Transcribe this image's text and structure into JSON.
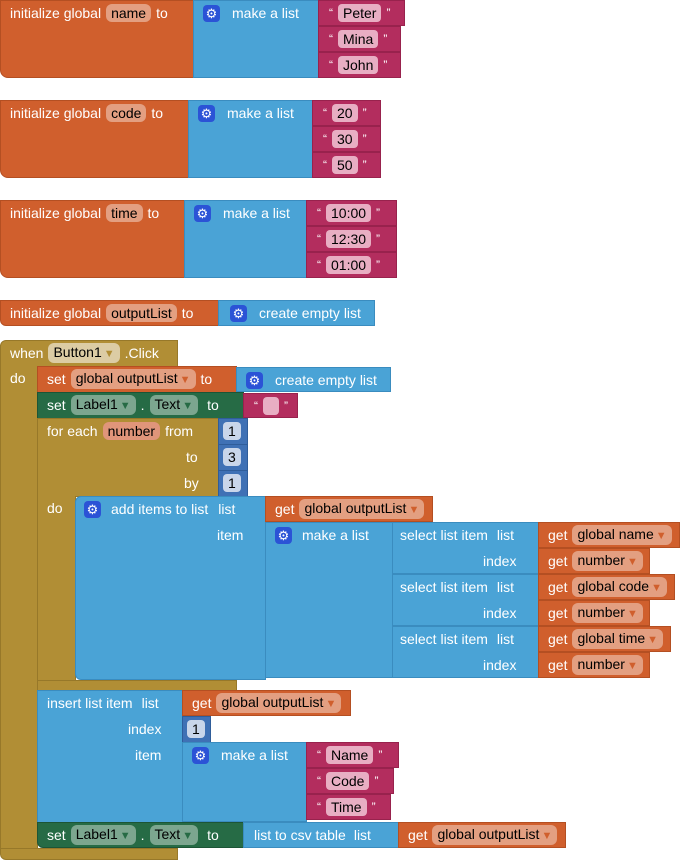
{
  "colors": {
    "variable": "#D05F2D",
    "list": "#4AA3D6",
    "text": "#B32D5E",
    "control": "#B18E35",
    "component": "#266B45",
    "math": "#3F71B5"
  },
  "quotes": {
    "open": "“",
    "close": "”"
  },
  "globals": [
    {
      "keyword": "initialize global",
      "name": "name",
      "to": "to",
      "make": "make a list",
      "items": [
        "Peter",
        "Mina",
        "John"
      ]
    },
    {
      "keyword": "initialize global",
      "name": "code",
      "to": "to",
      "make": "make a list",
      "items": [
        "20",
        "30",
        "50"
      ]
    },
    {
      "keyword": "initialize global",
      "name": "time",
      "to": "to",
      "make": "make a list",
      "items": [
        "10:00",
        "12:30",
        "01:00"
      ]
    }
  ],
  "output_init": {
    "keyword": "initialize global",
    "name": "outputList",
    "to": "to",
    "value": "create empty list"
  },
  "event": {
    "when": "when",
    "component": "Button1",
    "event": ".Click",
    "do": "do"
  },
  "set1": {
    "set": "set",
    "var": "global outputList",
    "to": "to",
    "value": "create empty list"
  },
  "set2": {
    "set": "set",
    "component": "Label1",
    "dot": ".",
    "prop": "Text",
    "to": "to",
    "value": ""
  },
  "loop": {
    "label": "for each",
    "var": "number",
    "from": "from",
    "to": "to",
    "by": "by",
    "from_val": "1",
    "to_val": "3",
    "by_val": "1",
    "do": "do"
  },
  "add": {
    "label": "add items to list",
    "list": "list",
    "get": "get",
    "target": "global outputList",
    "item": "item",
    "make": "make a list",
    "selects": [
      {
        "label": "select list item",
        "list": "list",
        "index": "index",
        "get": "get",
        "var": "global name",
        "idx": "number"
      },
      {
        "label": "select list item",
        "list": "list",
        "index": "index",
        "get": "get",
        "var": "global code",
        "idx": "number"
      },
      {
        "label": "select list item",
        "list": "list",
        "index": "index",
        "get": "get",
        "var": "global time",
        "idx": "number"
      }
    ]
  },
  "insert": {
    "label": "insert list item",
    "list": "list",
    "get": "get",
    "target": "global outputList",
    "index": "index",
    "index_val": "1",
    "item": "item",
    "make": "make a list",
    "items": [
      "Name",
      "Code",
      "Time"
    ]
  },
  "set3": {
    "set": "set",
    "component": "Label1",
    "dot": ".",
    "prop": "Text",
    "to": "to",
    "csv": "list to csv table",
    "list": "list",
    "get": "get",
    "target": "global outputList"
  }
}
